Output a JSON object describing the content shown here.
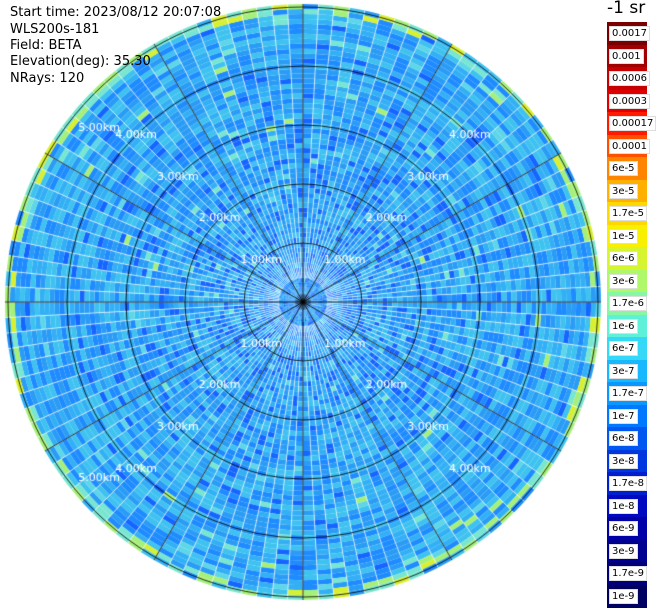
{
  "header": {
    "start_time": "Start time: 2023/08/12 20:07:08",
    "instrument": "WLS200s-181",
    "field": "Field: BETA",
    "elevation": "Elevation(deg): 35.30",
    "nrays": "NRays: 120"
  },
  "units_label": "-1 sr",
  "range_labels": [
    "1.00km",
    "2.00km",
    "3.00km",
    "4.00km",
    "5.00km"
  ],
  "colorbar": {
    "labels": [
      "0.0017",
      "0.001",
      "0.0006",
      "0.0003",
      "0.00017",
      "0.0001",
      "6e-5",
      "3e-5",
      "1.7e-5",
      "1e-5",
      "6e-6",
      "3e-6",
      "1.7e-6",
      "1e-6",
      "6e-7",
      "3e-7",
      "1.7e-7",
      "1e-7",
      "6e-8",
      "3e-8",
      "1.7e-8",
      "1e-8",
      "6e-9",
      "3e-9",
      "1.7e-9",
      "1e-9"
    ],
    "colors": [
      "#7a0000",
      "#a00000",
      "#c40000",
      "#e00000",
      "#ff1a00",
      "#ff5000",
      "#ff8400",
      "#ffb000",
      "#ffd800",
      "#f8f000",
      "#d6f530",
      "#aef86a",
      "#86f8a4",
      "#5ef0d8",
      "#36d8f8",
      "#18b8ff",
      "#0a98ff",
      "#0078ff",
      "#0058f0",
      "#0038e0",
      "#0020d0",
      "#0008c0",
      "#0000a8",
      "#000090",
      "#000078",
      "#000060"
    ]
  },
  "field_colors": [
    "#1565ff",
    "#1e8bff",
    "#2a9cf5",
    "#33b0f5",
    "#3fc2f0",
    "#5fd6e8",
    "#78e6d0",
    "#a6f07a",
    "#d8f030"
  ],
  "grid_color": "#000000"
}
